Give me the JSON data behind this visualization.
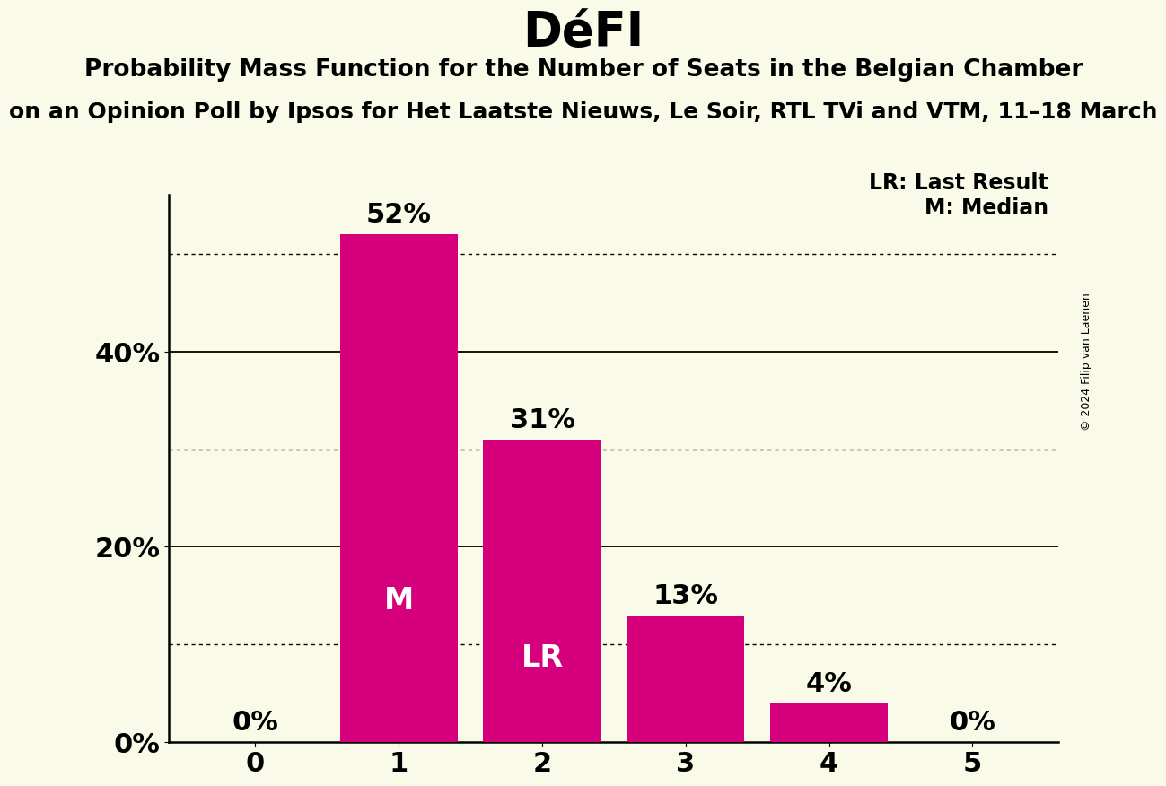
{
  "title": "DéFI",
  "subtitle1": "Probability Mass Function for the Number of Seats in the Belgian Chamber",
  "subtitle2": "on an Opinion Poll by Ipsos for Het Laatste Nieuws, Le Soir, RTL TVi and VTM, 11–18 March",
  "copyright": "© 2024 Filip van Laenen",
  "categories": [
    0,
    1,
    2,
    3,
    4,
    5
  ],
  "values": [
    0,
    52,
    31,
    13,
    4,
    0
  ],
  "bar_color": "#D6007D",
  "background_color": "#FAFAE8",
  "ylim": [
    0,
    56
  ],
  "yticks_labeled": [
    0,
    20,
    40
  ],
  "ytick_labels": [
    "0%",
    "20%",
    "40%"
  ],
  "solid_yticks": [
    20,
    40
  ],
  "dotted_yticks": [
    10,
    30,
    50
  ],
  "bar_labels": {
    "0": "0%",
    "1": "52%",
    "2": "31%",
    "3": "13%",
    "4": "4%",
    "5": "0%"
  },
  "bar_inner_labels": {
    "1": "M",
    "2": "LR"
  },
  "legend_lr": "LR: Last Result",
  "legend_m": "M: Median",
  "title_fontsize": 38,
  "subtitle1_fontsize": 19,
  "subtitle2_fontsize": 18,
  "bar_label_fontsize": 22,
  "tick_fontsize": 22,
  "inner_label_fontsize": 24,
  "legend_fontsize": 17,
  "copyright_fontsize": 9
}
